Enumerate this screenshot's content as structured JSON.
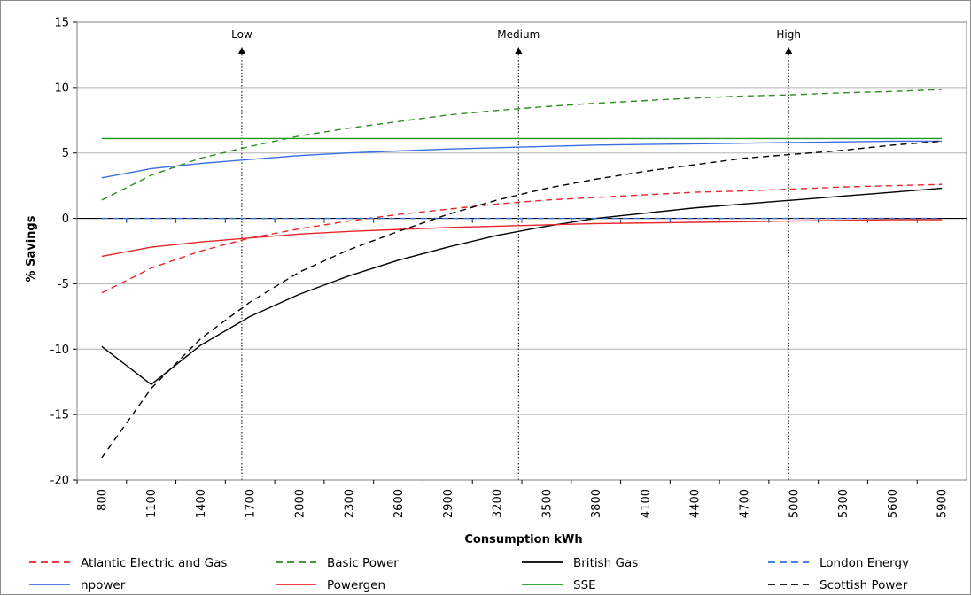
{
  "chart_data": {
    "type": "line",
    "title": "",
    "xlabel": "Consumption kWh",
    "ylabel": "% Savings",
    "x": [
      800,
      1100,
      1400,
      1700,
      2000,
      2300,
      2600,
      2900,
      3200,
      3500,
      3800,
      4100,
      4400,
      4700,
      5000,
      5300,
      5600,
      5900
    ],
    "xticks": [
      "800",
      "1100",
      "1400",
      "1700",
      "2000",
      "2300",
      "2600",
      "2900",
      "3200",
      "3500",
      "3800",
      "4100",
      "4400",
      "4700",
      "5000",
      "5300",
      "5600",
      "5900"
    ],
    "ylim": [
      -20,
      15
    ],
    "yticks": [
      "15",
      "10",
      "5",
      "0",
      "-5",
      "-10",
      "-15",
      "-20"
    ],
    "grid": "horizontal",
    "legend_position": "bottom",
    "annotations": [
      {
        "label": "Low",
        "x": 1650
      },
      {
        "label": "Medium",
        "x": 3330
      },
      {
        "label": "High",
        "x": 4970
      }
    ],
    "series": [
      {
        "name": "Atlantic Electric and Gas",
        "color": "#e8262b",
        "dash": "dashed",
        "values": [
          -5.7,
          -3.8,
          -2.5,
          -1.5,
          -0.8,
          -0.2,
          0.3,
          0.7,
          1.1,
          1.4,
          1.6,
          1.8,
          2.0,
          2.1,
          2.25,
          2.4,
          2.5,
          2.6
        ]
      },
      {
        "name": "Basic Power",
        "color": "#2e8b20",
        "dash": "dashed",
        "values": [
          1.4,
          3.3,
          4.6,
          5.5,
          6.3,
          6.9,
          7.4,
          7.9,
          8.25,
          8.55,
          8.8,
          9.0,
          9.2,
          9.35,
          9.45,
          9.6,
          9.7,
          9.85
        ]
      },
      {
        "name": "British Gas",
        "color": "#000000",
        "dash": "solid",
        "values": [
          -9.8,
          -12.7,
          -9.7,
          -7.5,
          -5.8,
          -4.4,
          -3.2,
          -2.2,
          -1.3,
          -0.6,
          0.0,
          0.4,
          0.8,
          1.1,
          1.4,
          1.7,
          2.0,
          2.3
        ]
      },
      {
        "name": "London Energy",
        "color": "#2f6fd6",
        "dash": "dashed",
        "values": [
          0,
          0,
          0,
          0,
          0,
          0,
          0,
          0,
          0,
          0,
          0,
          0,
          0,
          0,
          0,
          0,
          0,
          0
        ]
      },
      {
        "name": "npower",
        "color": "#3b6fe0",
        "dash": "solid",
        "values": [
          3.1,
          3.8,
          4.2,
          4.5,
          4.8,
          5.0,
          5.15,
          5.3,
          5.4,
          5.5,
          5.6,
          5.65,
          5.7,
          5.75,
          5.8,
          5.85,
          5.9,
          5.9
        ]
      },
      {
        "name": "Powergen",
        "color": "#e8262b",
        "dash": "solid",
        "values": [
          -2.9,
          -2.2,
          -1.8,
          -1.5,
          -1.2,
          -1.0,
          -0.85,
          -0.7,
          -0.6,
          -0.5,
          -0.4,
          -0.35,
          -0.3,
          -0.25,
          -0.2,
          -0.15,
          -0.1,
          -0.1
        ]
      },
      {
        "name": "SSE",
        "color": "#1f9a1f",
        "dash": "solid",
        "values": [
          6.1,
          6.1,
          6.1,
          6.1,
          6.1,
          6.1,
          6.1,
          6.1,
          6.1,
          6.1,
          6.1,
          6.1,
          6.1,
          6.1,
          6.1,
          6.1,
          6.1,
          6.1
        ]
      },
      {
        "name": "Scottish Power",
        "color": "#000000",
        "dash": "dashed",
        "values": [
          -18.3,
          -13.0,
          -9.2,
          -6.4,
          -4.1,
          -2.4,
          -1.0,
          0.3,
          1.4,
          2.3,
          3.0,
          3.6,
          4.1,
          4.6,
          4.9,
          5.2,
          5.6,
          5.9
        ]
      }
    ]
  }
}
